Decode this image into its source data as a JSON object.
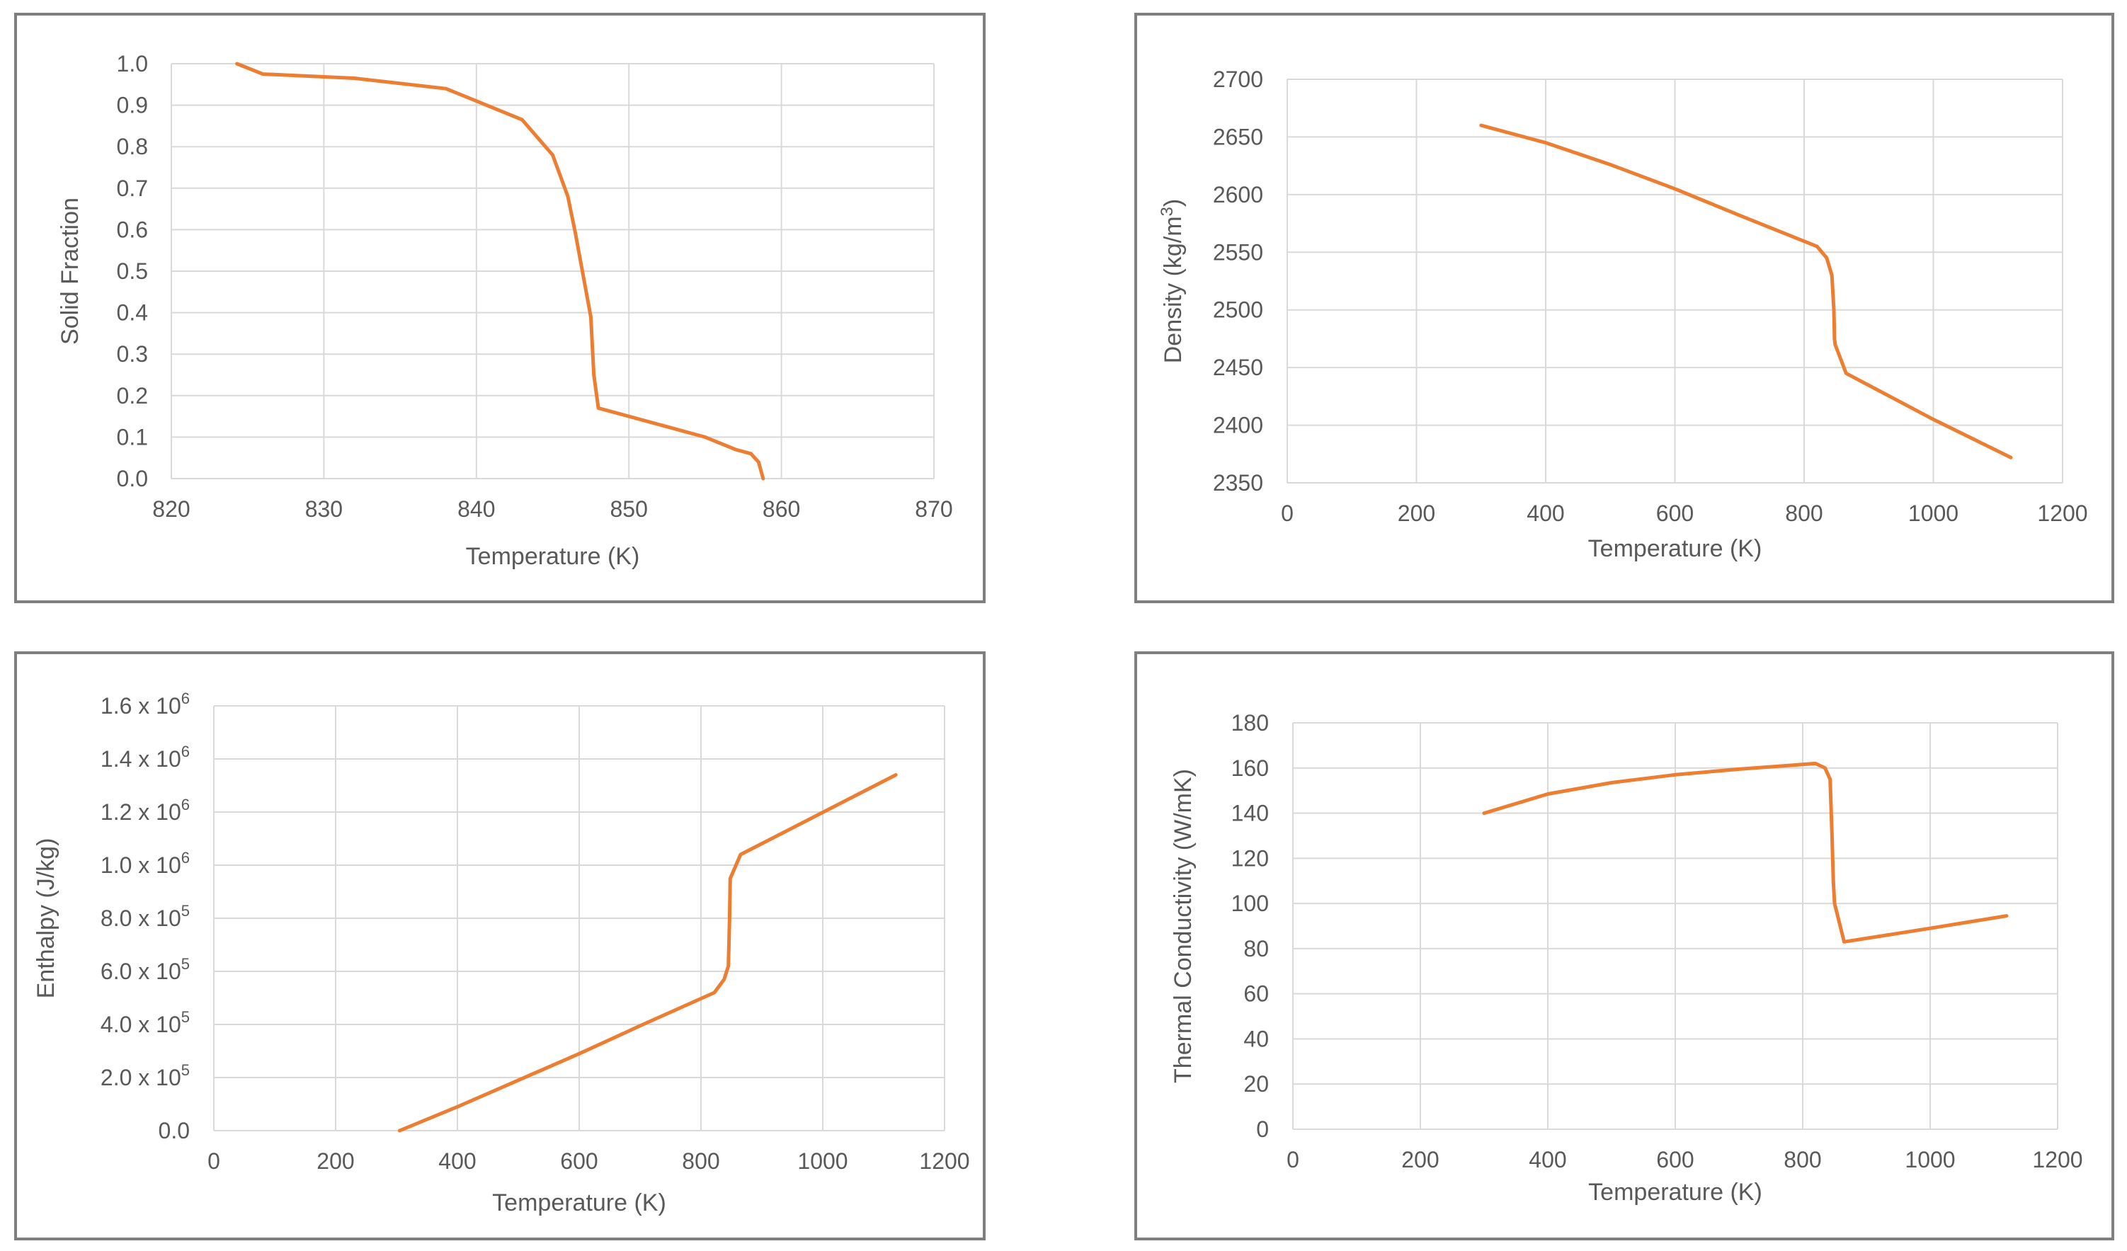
{
  "colors": {
    "series": "#ed7d31",
    "grid": "#d9d9d9",
    "text": "#595959",
    "frame": "#7f7f7f"
  },
  "chart_data": [
    {
      "id": "solid-fraction",
      "type": "line",
      "xlabel": "Temperature  (K)",
      "ylabel": "Solid Fraction",
      "xlim": [
        820,
        870
      ],
      "ylim": [
        0,
        1
      ],
      "xticks": [
        820,
        830,
        840,
        850,
        860,
        870
      ],
      "xtick_labels": [
        "820",
        "830",
        "840",
        "850",
        "860",
        "870"
      ],
      "yticks": [
        0,
        0.1,
        0.2,
        0.3,
        0.4,
        0.5,
        0.6,
        0.7,
        0.8,
        0.9,
        1.0
      ],
      "ytick_labels": [
        "0.0",
        "0.1",
        "0.2",
        "0.3",
        "0.4",
        "0.5",
        "0.6",
        "0.7",
        "0.8",
        "0.9",
        "1.0"
      ],
      "series": [
        {
          "name": "Solid Fraction",
          "x": [
            824.3,
            826,
            832,
            838,
            840,
            843,
            845,
            846,
            846.5,
            847,
            847.5,
            847.7,
            848,
            852,
            855,
            857,
            858,
            858.5,
            858.8
          ],
          "y": [
            1.0,
            0.975,
            0.965,
            0.94,
            0.91,
            0.865,
            0.78,
            0.68,
            0.59,
            0.49,
            0.39,
            0.25,
            0.17,
            0.13,
            0.1,
            0.07,
            0.06,
            0.04,
            0.0
          ]
        }
      ]
    },
    {
      "id": "density",
      "type": "line",
      "xlabel": "Temperature  (K)",
      "ylabel": "Density  (kg/m³)",
      "ylabel_main": "Density  (kg/m",
      "ylabel_sup": "3",
      "ylabel_end": ")",
      "xlim": [
        0,
        1200
      ],
      "ylim": [
        2350,
        2700
      ],
      "xticks": [
        0,
        200,
        400,
        600,
        800,
        1000,
        1200
      ],
      "xtick_labels": [
        "0",
        "200",
        "400",
        "600",
        "800",
        "1000",
        "1200"
      ],
      "yticks": [
        2350,
        2400,
        2450,
        2500,
        2550,
        2600,
        2650,
        2700
      ],
      "ytick_labels": [
        "2350",
        "2400",
        "2450",
        "2500",
        "2550",
        "2600",
        "2650",
        "2700"
      ],
      "series": [
        {
          "name": "Density",
          "x": [
            300,
            400,
            500,
            600,
            700,
            820,
            835,
            843,
            846,
            847,
            848,
            865,
            1000,
            1120
          ],
          "y": [
            2660,
            2645,
            2626,
            2605,
            2582,
            2555,
            2545,
            2530,
            2500,
            2475,
            2470,
            2445,
            2405,
            2372
          ]
        }
      ]
    },
    {
      "id": "enthalpy",
      "type": "line",
      "xlabel": "Temperature  (K)",
      "ylabel": "Enthalpy  (J/kg)",
      "xlim": [
        0,
        1200
      ],
      "ylim": [
        0,
        1600000
      ],
      "xticks": [
        0,
        200,
        400,
        600,
        800,
        1000,
        1200
      ],
      "xtick_labels": [
        "0",
        "200",
        "400",
        "600",
        "800",
        "1000",
        "1200"
      ],
      "yticks": [
        0,
        200000,
        400000,
        600000,
        800000,
        1000000,
        1200000,
        1400000,
        1600000
      ],
      "ytick_labels": [
        {
          "main": "0.0",
          "sup": ""
        },
        {
          "main": "2.0 x 10",
          "sup": "5"
        },
        {
          "main": "4.0 x 10",
          "sup": "5"
        },
        {
          "main": "6.0 x 10",
          "sup": "5"
        },
        {
          "main": "8.0 x 10",
          "sup": "5"
        },
        {
          "main": "1.0 x 10",
          "sup": "6"
        },
        {
          "main": "1.2 x 10",
          "sup": "6"
        },
        {
          "main": "1.4 x 10",
          "sup": "6"
        },
        {
          "main": "1.6 x 10",
          "sup": "6"
        }
      ],
      "series": [
        {
          "name": "Enthalpy",
          "x": [
            305,
            400,
            500,
            600,
            700,
            822,
            838,
            845,
            847,
            848,
            850,
            865,
            1120
          ],
          "y": [
            0,
            90000,
            190000,
            290000,
            395000,
            520000,
            570000,
            620000,
            800000,
            950000,
            960000,
            1040000,
            1340000
          ]
        }
      ]
    },
    {
      "id": "thermal-conductivity",
      "type": "line",
      "xlabel": "Temperature  (K)",
      "ylabel": "Thermal  Conductivity  (W/mK)",
      "xlim": [
        0,
        1200
      ],
      "ylim": [
        0,
        180
      ],
      "xticks": [
        0,
        200,
        400,
        600,
        800,
        1000,
        1200
      ],
      "xtick_labels": [
        "0",
        "200",
        "400",
        "600",
        "800",
        "1000",
        "1200"
      ],
      "yticks": [
        0,
        20,
        40,
        60,
        80,
        100,
        120,
        140,
        160,
        180
      ],
      "ytick_labels": [
        "0",
        "20",
        "40",
        "60",
        "80",
        "100",
        "120",
        "140",
        "160",
        "180"
      ],
      "series": [
        {
          "name": "Thermal Conductivity",
          "x": [
            300,
            400,
            500,
            600,
            700,
            820,
            835,
            843,
            846,
            848,
            850,
            865,
            1000,
            1120
          ],
          "y": [
            140,
            148.5,
            153.5,
            157,
            159.5,
            162,
            160,
            155,
            130,
            110,
            100,
            83,
            89,
            94.5
          ]
        }
      ]
    }
  ]
}
